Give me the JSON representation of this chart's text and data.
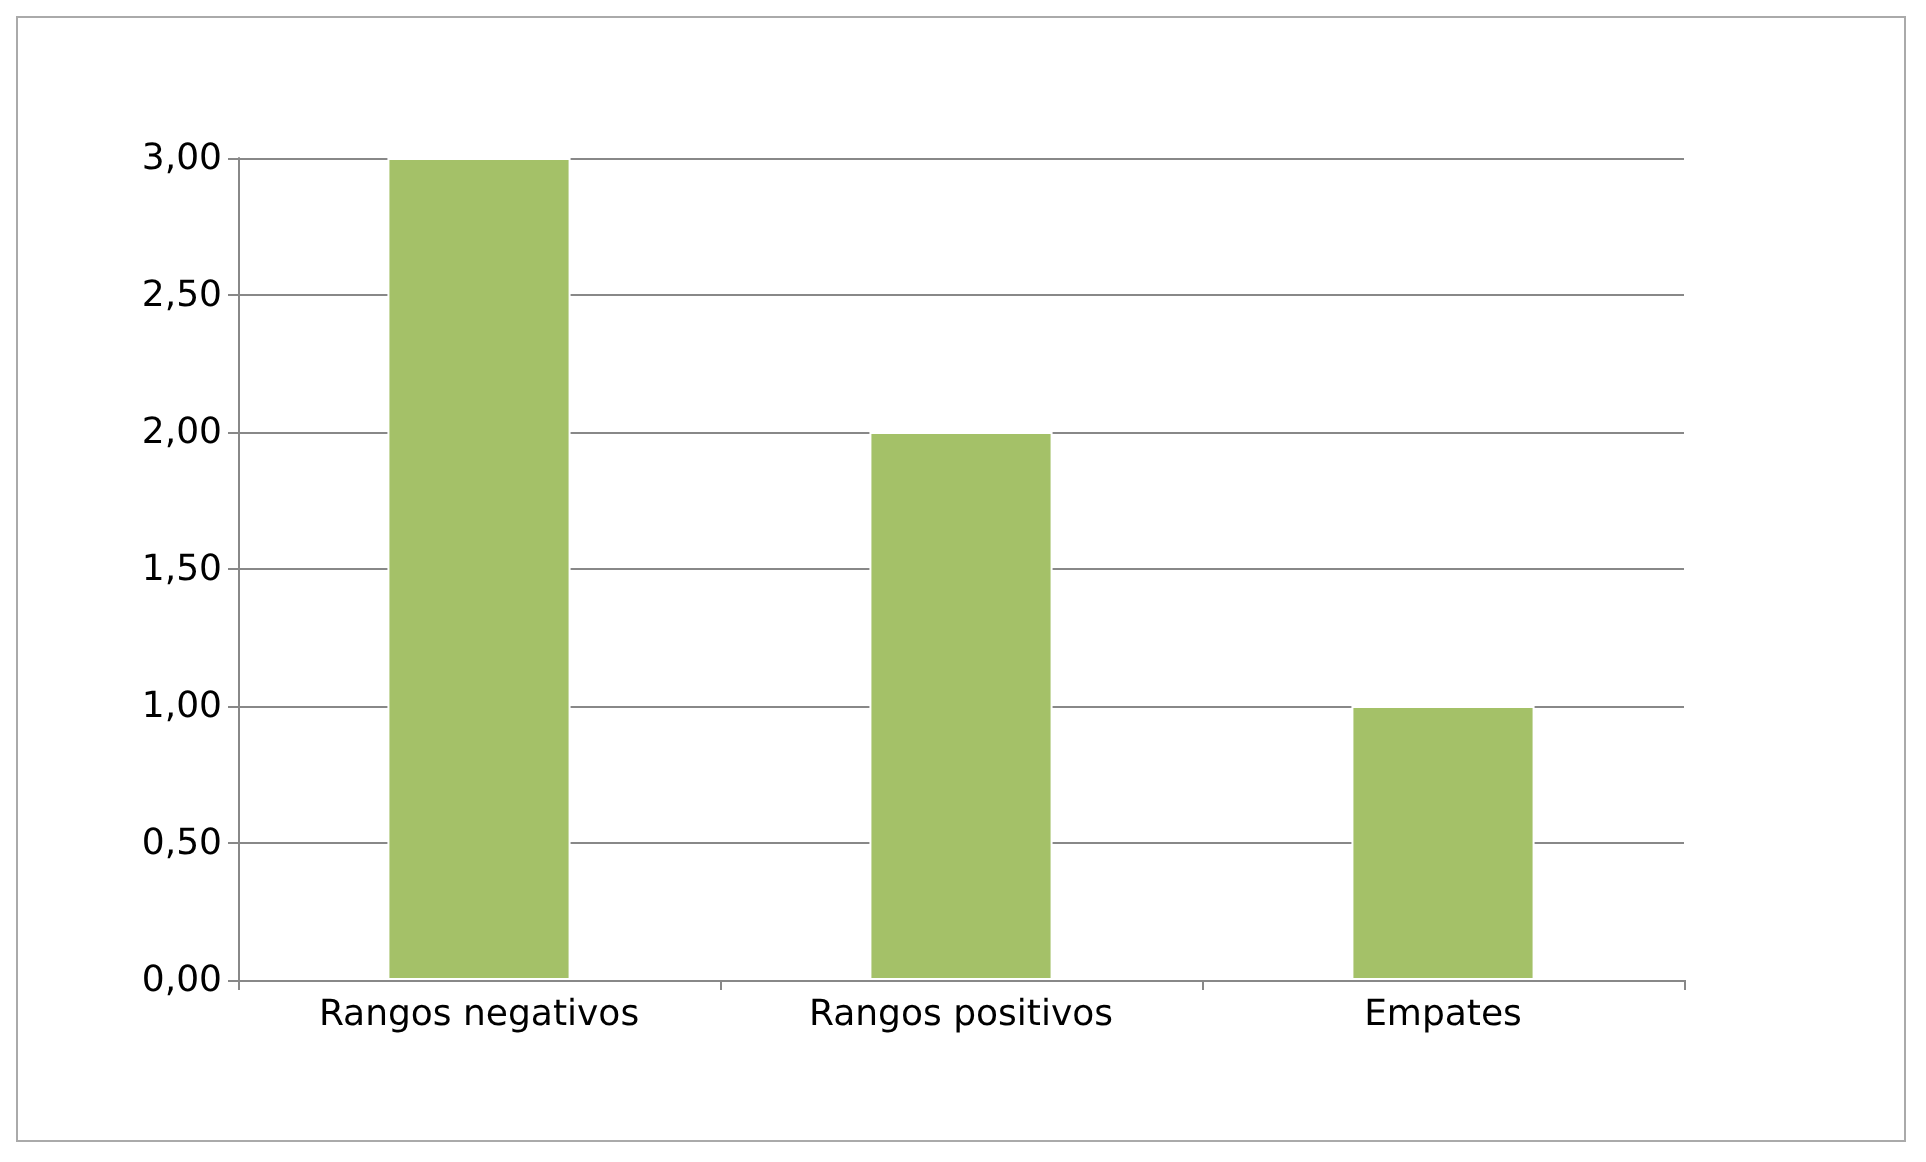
{
  "chart_data": {
    "type": "bar",
    "categories": [
      "Rangos negativos",
      "Rangos positivos",
      "Empates"
    ],
    "values": [
      3,
      2,
      1
    ],
    "color": "#a4c168",
    "ylim": [
      0,
      3
    ],
    "yticks": [
      {
        "value": 0,
        "label": "0,00"
      },
      {
        "value": 0.5,
        "label": "0,50"
      },
      {
        "value": 1,
        "label": "1,00"
      },
      {
        "value": 1.5,
        "label": "1,50"
      },
      {
        "value": 2,
        "label": "2,00"
      },
      {
        "value": 2.5,
        "label": "2,50"
      },
      {
        "value": 3,
        "label": "3,00"
      }
    ],
    "grid": "y"
  }
}
